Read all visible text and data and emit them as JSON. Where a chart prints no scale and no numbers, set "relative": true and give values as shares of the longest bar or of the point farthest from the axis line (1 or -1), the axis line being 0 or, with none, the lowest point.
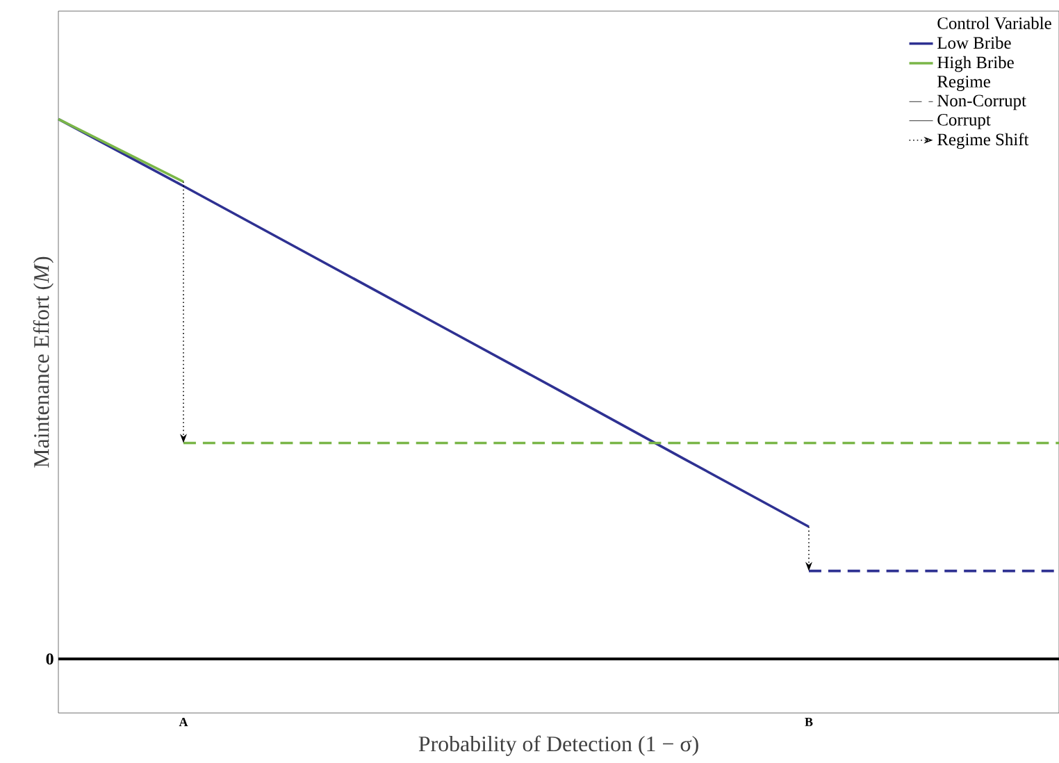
{
  "chart_data": {
    "type": "line",
    "relative": true,
    "xlabel": "Probability of Detection (1 − σ)",
    "ylabel": "Maintenance Effort (*M*)",
    "legend_title": "Control Variable",
    "legend": "top right",
    "categories": [
      null,
      "A",
      null,
      null,
      null,
      null,
      "B",
      null,
      null
    ],
    "series": [
      {
        "name": "Low Bribe",
        "color": "#2e3192",
        "line_style": "solid",
        "values": [
          1.0,
          0.876,
          0.75,
          0.624,
          0.498,
          0.371,
          0.245,
          null,
          null
        ]
      },
      {
        "name": "High Bribe",
        "color": "#7ab648",
        "line_style": "solid",
        "values": [
          1.0,
          0.884,
          null,
          null,
          null,
          null,
          null,
          null,
          null
        ]
      },
      {
        "color": "#7ab648",
        "line_style": "dashed",
        "values": [
          null,
          0.4,
          0.4,
          0.4,
          0.4,
          0.4,
          0.4,
          0.4,
          0.4
        ]
      },
      {
        "color": "#2e3192",
        "line_style": "dashed",
        "values": [
          null,
          null,
          null,
          null,
          null,
          null,
          0.163,
          0.163,
          0.163
        ]
      }
    ],
    "ref_lines": [
      {
        "axis": "y",
        "value": 0,
        "label": "0",
        "color": "#000000"
      }
    ],
    "annotations": [
      "Regime",
      "Non-Corrupt",
      "Corrupt",
      "Regime Shift"
    ]
  }
}
